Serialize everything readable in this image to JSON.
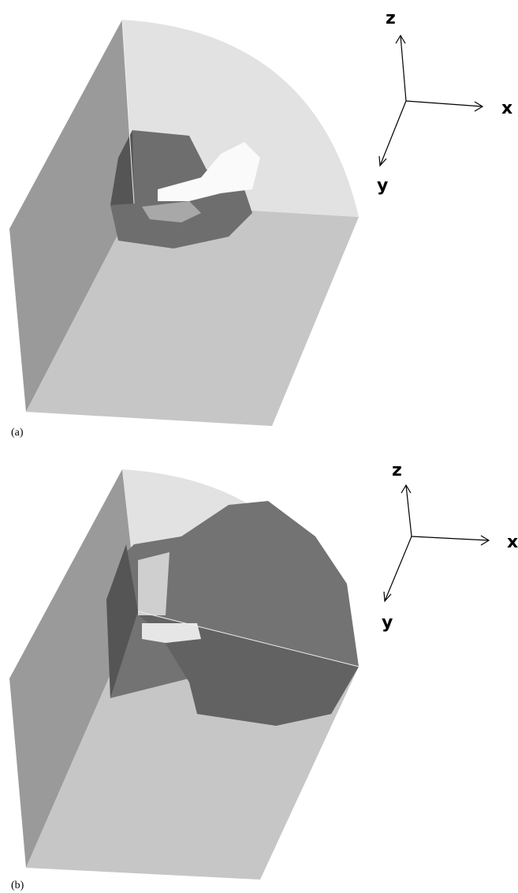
{
  "panels": [
    {
      "label": "(a)",
      "axes": {
        "z": "z",
        "x": "x",
        "y": "y"
      }
    },
    {
      "label": "(b)",
      "axes": {
        "z": "z",
        "x": "x",
        "y": "y"
      }
    }
  ]
}
